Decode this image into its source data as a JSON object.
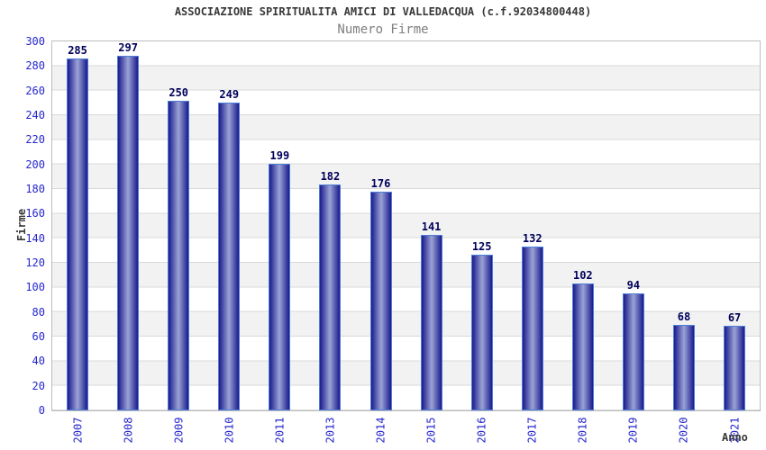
{
  "chart_data": {
    "type": "bar",
    "title": "ASSOCIAZIONE SPIRITUALITA AMICI DI VALLEDACQUA (c.f.92034800448)",
    "subtitle": "Numero Firme",
    "xlabel": "Anno",
    "ylabel": "Firme",
    "categories": [
      "2007",
      "2008",
      "2009",
      "2010",
      "2011",
      "2013",
      "2014",
      "2015",
      "2016",
      "2017",
      "2018",
      "2019",
      "2020",
      "2021"
    ],
    "values": [
      285,
      297,
      250,
      249,
      199,
      182,
      176,
      141,
      125,
      132,
      102,
      94,
      68,
      67
    ],
    "ylim": [
      0,
      300
    ],
    "y_ticks": [
      0,
      20,
      40,
      60,
      80,
      100,
      120,
      140,
      160,
      180,
      200,
      220,
      240,
      260,
      280,
      300
    ],
    "grid": "horizontal-bands",
    "legend_position": "none",
    "colors": {
      "title_text": "#383838",
      "subtitle_text": "#7f7f7f",
      "tick_label": "#2626cc",
      "value_label": "#00005a",
      "axis_label_text": "#383838",
      "bar_edge": "#4d7dd6",
      "bar_dark": "#1a1a8c",
      "bar_light": "#9ba3d6",
      "band_white": "#ffffff",
      "band_gray": "#f2f2f2",
      "grid_line": "#d9d9d9",
      "plot_border": "#bdbdbd"
    }
  }
}
